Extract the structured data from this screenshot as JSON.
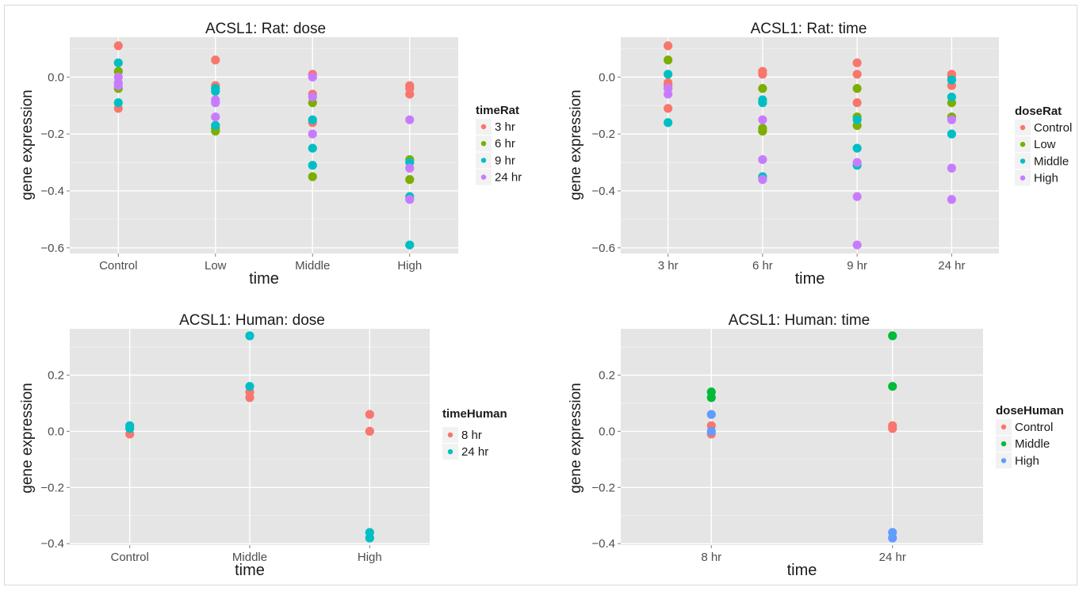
{
  "chart_data": [
    {
      "type": "scatter",
      "title": "ACSL1: Rat: dose",
      "xlabel": "time",
      "ylabel": "gene expression",
      "categories": [
        "Control",
        "Low",
        "Middle",
        "High"
      ],
      "ylim": [
        -0.62,
        0.14
      ],
      "yticks": [
        "-0.6",
        "-0.4",
        "-0.2",
        "0.0"
      ],
      "ytick_values": [
        -0.6,
        -0.4,
        -0.2,
        0.0
      ],
      "legend": {
        "title": "timeRat",
        "position": "right"
      },
      "grid": true,
      "series": [
        {
          "name": "3 hr",
          "color": "#F8766D",
          "points": [
            [
              "Control",
              0.11
            ],
            [
              "Control",
              -0.11
            ],
            [
              "Low",
              0.06
            ],
            [
              "Low",
              -0.03
            ],
            [
              "Middle",
              0.01
            ],
            [
              "Middle",
              -0.06
            ],
            [
              "Middle",
              -0.16
            ],
            [
              "High",
              -0.03
            ],
            [
              "High",
              -0.04
            ],
            [
              "High",
              -0.06
            ]
          ]
        },
        {
          "name": "6 hr",
          "color": "#7CAE00",
          "points": [
            [
              "Control",
              0.02
            ],
            [
              "Control",
              -0.04
            ],
            [
              "Low",
              -0.18
            ],
            [
              "Low",
              -0.19
            ],
            [
              "Middle",
              -0.09
            ],
            [
              "Middle",
              -0.35
            ],
            [
              "High",
              -0.29
            ],
            [
              "High",
              -0.36
            ]
          ]
        },
        {
          "name": "9 hr",
          "color": "#00BFC4",
          "points": [
            [
              "Control",
              0.05
            ],
            [
              "Control",
              -0.09
            ],
            [
              "Low",
              -0.04
            ],
            [
              "Low",
              -0.05
            ],
            [
              "Low",
              -0.17
            ],
            [
              "Middle",
              -0.15
            ],
            [
              "Middle",
              -0.25
            ],
            [
              "Middle",
              -0.31
            ],
            [
              "High",
              -0.3
            ],
            [
              "High",
              -0.42
            ],
            [
              "High",
              -0.59
            ]
          ]
        },
        {
          "name": "24 hr",
          "color": "#C77CFF",
          "points": [
            [
              "Control",
              0.0
            ],
            [
              "Control",
              -0.02
            ],
            [
              "Control",
              -0.03
            ],
            [
              "Low",
              -0.08
            ],
            [
              "Low",
              -0.09
            ],
            [
              "Low",
              -0.14
            ],
            [
              "Middle",
              0.0
            ],
            [
              "Middle",
              -0.07
            ],
            [
              "Middle",
              -0.2
            ],
            [
              "High",
              -0.15
            ],
            [
              "High",
              -0.32
            ],
            [
              "High",
              -0.43
            ]
          ]
        }
      ]
    },
    {
      "type": "scatter",
      "title": "ACSL1: Rat: time",
      "xlabel": "time",
      "ylabel": "gene expression",
      "categories": [
        "3 hr",
        "6 hr",
        "9 hr",
        "24 hr"
      ],
      "ylim": [
        -0.62,
        0.14
      ],
      "yticks": [
        "-0.6",
        "-0.4",
        "-0.2",
        "0.0"
      ],
      "ytick_values": [
        -0.6,
        -0.4,
        -0.2,
        0.0
      ],
      "legend": {
        "title": "doseRat",
        "position": "right"
      },
      "grid": true,
      "series": [
        {
          "name": "Control",
          "color": "#F8766D",
          "points": [
            [
              "3 hr",
              0.11
            ],
            [
              "3 hr",
              -0.02
            ],
            [
              "3 hr",
              -0.03
            ],
            [
              "3 hr",
              -0.11
            ],
            [
              "6 hr",
              0.02
            ],
            [
              "6 hr",
              0.01
            ],
            [
              "9 hr",
              0.05
            ],
            [
              "9 hr",
              0.01
            ],
            [
              "9 hr",
              -0.09
            ],
            [
              "24 hr",
              0.01
            ],
            [
              "24 hr",
              0.0
            ],
            [
              "24 hr",
              -0.03
            ]
          ]
        },
        {
          "name": "Low",
          "color": "#7CAE00",
          "points": [
            [
              "3 hr",
              0.06
            ],
            [
              "6 hr",
              -0.04
            ],
            [
              "6 hr",
              -0.18
            ],
            [
              "6 hr",
              -0.19
            ],
            [
              "9 hr",
              -0.04
            ],
            [
              "9 hr",
              -0.14
            ],
            [
              "9 hr",
              -0.17
            ],
            [
              "24 hr",
              -0.09
            ],
            [
              "24 hr",
              -0.14
            ]
          ]
        },
        {
          "name": "Middle",
          "color": "#00BFC4",
          "points": [
            [
              "3 hr",
              0.01
            ],
            [
              "3 hr",
              -0.16
            ],
            [
              "6 hr",
              -0.08
            ],
            [
              "6 hr",
              -0.09
            ],
            [
              "6 hr",
              -0.35
            ],
            [
              "9 hr",
              -0.15
            ],
            [
              "9 hr",
              -0.25
            ],
            [
              "9 hr",
              -0.31
            ],
            [
              "24 hr",
              -0.01
            ],
            [
              "24 hr",
              -0.07
            ],
            [
              "24 hr",
              -0.2
            ]
          ]
        },
        {
          "name": "High",
          "color": "#C77CFF",
          "points": [
            [
              "3 hr",
              -0.04
            ],
            [
              "3 hr",
              -0.06
            ],
            [
              "6 hr",
              -0.15
            ],
            [
              "6 hr",
              -0.29
            ],
            [
              "6 hr",
              -0.36
            ],
            [
              "9 hr",
              -0.3
            ],
            [
              "9 hr",
              -0.42
            ],
            [
              "9 hr",
              -0.59
            ],
            [
              "24 hr",
              -0.15
            ],
            [
              "24 hr",
              -0.32
            ],
            [
              "24 hr",
              -0.43
            ]
          ]
        }
      ]
    },
    {
      "type": "scatter",
      "title": "ACSL1: Human: dose",
      "xlabel": "time",
      "ylabel": "gene expression",
      "categories": [
        "Control",
        "Middle",
        "High"
      ],
      "ylim": [
        -0.405,
        0.365
      ],
      "yticks": [
        "-0.4",
        "-0.2",
        "0.0",
        "0.2"
      ],
      "ytick_values": [
        -0.4,
        -0.2,
        0.0,
        0.2
      ],
      "legend": {
        "title": "timeHuman",
        "position": "right"
      },
      "grid": true,
      "series": [
        {
          "name": "8 hr",
          "color": "#F8766D",
          "points": [
            [
              "Control",
              -0.01
            ],
            [
              "Middle",
              0.14
            ],
            [
              "Middle",
              0.12
            ],
            [
              "High",
              0.06
            ],
            [
              "High",
              0.0
            ]
          ]
        },
        {
          "name": "24 hr",
          "color": "#00BFC4",
          "points": [
            [
              "Control",
              0.02
            ],
            [
              "Control",
              0.01
            ],
            [
              "Middle",
              0.34
            ],
            [
              "Middle",
              0.16
            ],
            [
              "High",
              -0.36
            ],
            [
              "High",
              -0.38
            ]
          ]
        }
      ]
    },
    {
      "type": "scatter",
      "title": "ACSL1: Human: time",
      "xlabel": "time",
      "ylabel": "gene expression",
      "categories": [
        "8 hr",
        "24 hr"
      ],
      "ylim": [
        -0.405,
        0.365
      ],
      "yticks": [
        "-0.4",
        "-0.2",
        "0.0",
        "0.2"
      ],
      "ytick_values": [
        -0.4,
        -0.2,
        0.0,
        0.2
      ],
      "legend": {
        "title": "doseHuman",
        "position": "right"
      },
      "grid": true,
      "series": [
        {
          "name": "Control",
          "color": "#F8766D",
          "points": [
            [
              "8 hr",
              0.02
            ],
            [
              "8 hr",
              -0.01
            ],
            [
              "24 hr",
              0.02
            ],
            [
              "24 hr",
              0.01
            ]
          ]
        },
        {
          "name": "Middle",
          "color": "#00BA38",
          "points": [
            [
              "8 hr",
              0.14
            ],
            [
              "8 hr",
              0.12
            ],
            [
              "24 hr",
              0.34
            ],
            [
              "24 hr",
              0.16
            ]
          ]
        },
        {
          "name": "High",
          "color": "#619CFF",
          "points": [
            [
              "8 hr",
              0.06
            ],
            [
              "8 hr",
              0.0
            ],
            [
              "24 hr",
              -0.36
            ],
            [
              "24 hr",
              -0.38
            ]
          ]
        }
      ]
    }
  ]
}
